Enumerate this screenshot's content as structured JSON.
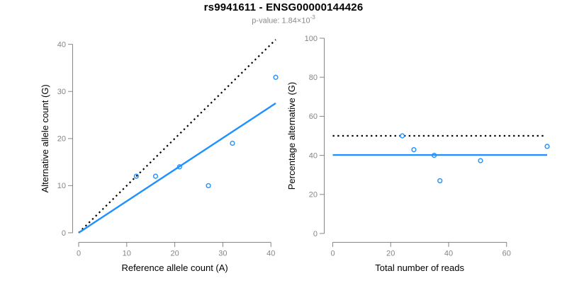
{
  "header": {
    "title": "rs9941611 - ENSG00000144426",
    "subtitle_base": "p-value: 1.84×10",
    "subtitle_exponent": "-3"
  },
  "colors": {
    "point_blue": "#1E90FF",
    "solid_line_blue": "#1E90FF",
    "dotted_line_black": "#000000",
    "axis_gray": "#858585",
    "tick_label_gray": "#858585",
    "axis_title_black": "#000000",
    "subtitle_gray": "#8a8a8a",
    "background": "#ffffff"
  },
  "chart_data": [
    {
      "name": "allele-count-scatter",
      "type": "scatter",
      "title": "",
      "xlabel": "Reference allele count (A)",
      "ylabel": "Alternative allele count (G)",
      "xlim": [
        0,
        41
      ],
      "ylim": [
        0,
        41
      ],
      "xticks": [
        0,
        10,
        20,
        30,
        40
      ],
      "yticks": [
        0,
        10,
        20,
        30,
        40
      ],
      "grid": false,
      "legend": null,
      "points": [
        [
          12,
          12
        ],
        [
          16,
          12
        ],
        [
          21,
          14
        ],
        [
          27,
          10
        ],
        [
          32,
          19
        ],
        [
          41,
          33
        ]
      ],
      "lines": [
        {
          "name": "identity-dotted-line",
          "style": "dotted",
          "color": "#000000",
          "x": [
            0,
            41
          ],
          "y": [
            0,
            41
          ]
        },
        {
          "name": "fit-solid-line",
          "style": "solid",
          "color": "#1E90FF",
          "x": [
            0,
            41
          ],
          "y": [
            0,
            27.5
          ]
        }
      ]
    },
    {
      "name": "percentage-alternative-scatter",
      "type": "scatter",
      "title": "",
      "xlabel": "Total number of reads",
      "ylabel": "Percentage alternative (G)",
      "xlim": [
        0,
        74
      ],
      "ylim": [
        0,
        100
      ],
      "xticks": [
        0,
        20,
        40,
        60
      ],
      "yticks": [
        0,
        20,
        40,
        60,
        80,
        100
      ],
      "grid": false,
      "legend": null,
      "points": [
        [
          24,
          50
        ],
        [
          28,
          42.9
        ],
        [
          35,
          40
        ],
        [
          37,
          27
        ],
        [
          51,
          37.3
        ],
        [
          74,
          44.6
        ]
      ],
      "lines": [
        {
          "name": "expected-50pct-dotted-line",
          "style": "dotted",
          "color": "#000000",
          "x": [
            0,
            73
          ],
          "y": [
            50,
            50
          ]
        },
        {
          "name": "observed-mean-solid-line",
          "style": "solid",
          "color": "#1E90FF",
          "x": [
            0,
            74
          ],
          "y": [
            40.2,
            40.2
          ]
        }
      ]
    }
  ]
}
